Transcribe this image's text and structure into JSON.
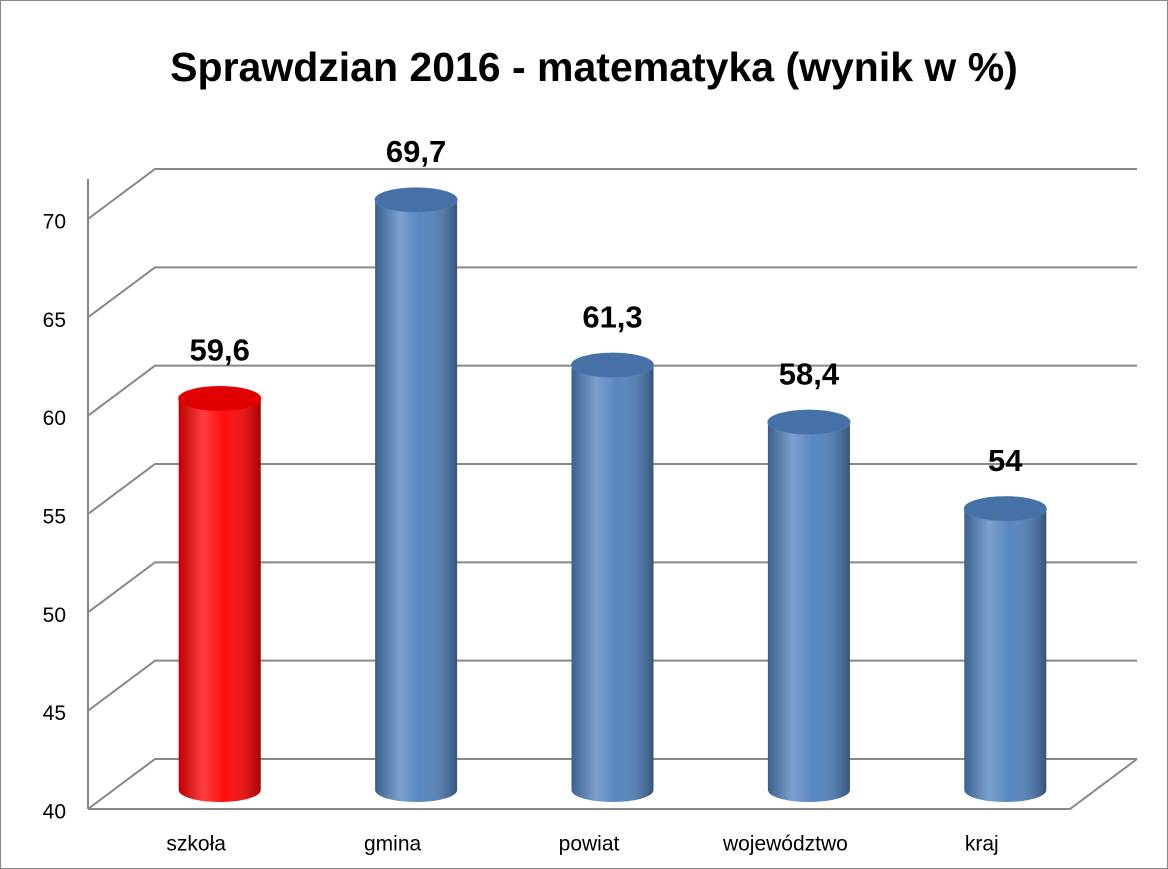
{
  "chart_data": {
    "type": "bar3d",
    "title": "Sprawdzian 2016 - matematyka (wynik w %)",
    "categories": [
      "szkoła",
      "gmina",
      "powiat",
      "województwo",
      "kraj"
    ],
    "values": [
      59.6,
      69.7,
      61.3,
      58.4,
      54
    ],
    "value_labels": [
      "59,6",
      "69,7",
      "61,3",
      "58,4",
      "54"
    ],
    "colors": [
      "#ff0000",
      "#4f81bd",
      "#4f81bd",
      "#4f81bd",
      "#4f81bd"
    ],
    "ylim": [
      40,
      70
    ],
    "yticks": [
      40,
      45,
      50,
      55,
      60,
      65,
      70
    ],
    "grid": true
  }
}
